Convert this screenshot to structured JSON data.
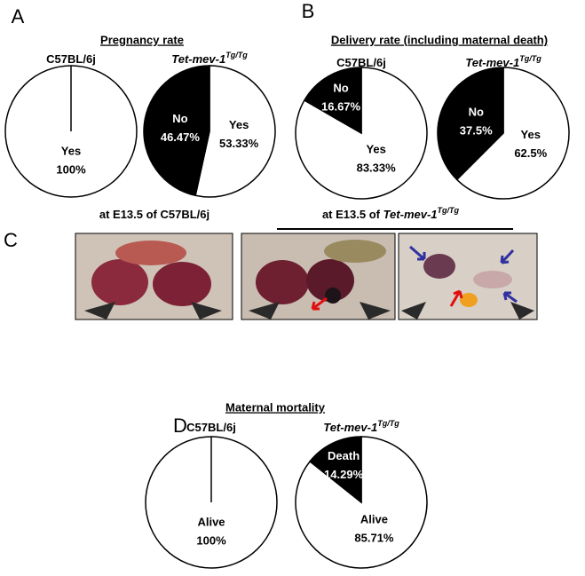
{
  "sections": [
    {
      "label": "A",
      "heading": "Pregnancy rate"
    },
    {
      "label": "B",
      "heading": "Delivery rate (including maternal death)"
    },
    {
      "label": "C",
      "captions": [
        {
          "text": "at E13.5 of C57BL/6j"
        },
        {
          "text": "at E13.5 of ",
          "italic": "Tet-mev-1",
          "sup": "Tg/Tg"
        }
      ]
    },
    {
      "label": "D",
      "heading": "Maternal mortality"
    }
  ],
  "chart_data": [
    {
      "type": "pie",
      "title": "C57BL/6j",
      "categories": [
        "Yes"
      ],
      "values": [
        100
      ],
      "value_labels": [
        "100%"
      ],
      "colors": [
        "#ffffff"
      ]
    },
    {
      "type": "pie",
      "title": "Tet-mev-1",
      "title_sup": "Tg/Tg",
      "categories": [
        "Yes",
        "No"
      ],
      "values": [
        53.33,
        46.47
      ],
      "value_labels": [
        "53.33%",
        "46.47%"
      ],
      "colors": [
        "#ffffff",
        "#000000"
      ]
    },
    {
      "type": "pie",
      "title": "C57BL/6j",
      "categories": [
        "Yes",
        "No"
      ],
      "values": [
        83.33,
        16.67
      ],
      "value_labels": [
        "83.33%",
        "16.67%"
      ],
      "colors": [
        "#ffffff",
        "#000000"
      ]
    },
    {
      "type": "pie",
      "title": "Tet-mev-1",
      "title_sup": "Tg/Tg",
      "categories": [
        "Yes",
        "No"
      ],
      "values": [
        62.5,
        37.5
      ],
      "value_labels": [
        "62.5%",
        "37.5%"
      ],
      "colors": [
        "#ffffff",
        "#000000"
      ]
    },
    {
      "type": "pie",
      "title": "C57BL/6j",
      "categories": [
        "Alive"
      ],
      "values": [
        100
      ],
      "value_labels": [
        "100%"
      ],
      "colors": [
        "#ffffff"
      ]
    },
    {
      "type": "pie",
      "title": "Tet-mev-1",
      "title_sup": "Tg/Tg",
      "categories": [
        "Alive",
        "Death"
      ],
      "values": [
        85.71,
        14.29
      ],
      "value_labels": [
        "85.71%",
        "14.29%"
      ],
      "colors": [
        "#ffffff",
        "#000000"
      ]
    }
  ]
}
